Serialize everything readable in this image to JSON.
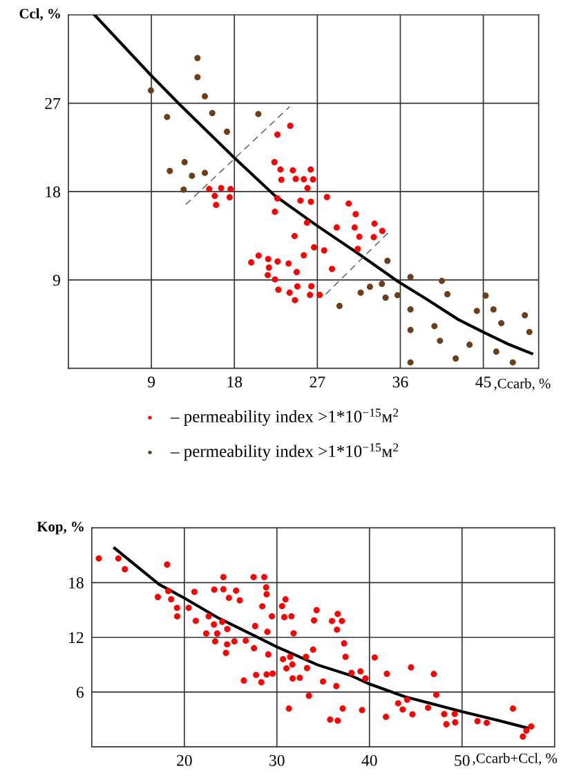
{
  "chart_data": [
    {
      "type": "scatter",
      "xlabel": ",Ccarb, %",
      "ylabel": "Ccl, %",
      "xlim": [
        0,
        51
      ],
      "ylim": [
        0,
        36
      ],
      "xticks": [
        9,
        18,
        27,
        36,
        45
      ],
      "yticks": [
        9,
        18,
        27
      ],
      "grid": true,
      "legend": "bottom",
      "marker": "circle",
      "series": [
        {
          "name": "– permeability index >1*10$^{−15}$м$^{2}$",
          "color": "#ff0000",
          "x": [
            15.27,
            16.57,
            17.59,
            15.87,
            17.49,
            16.02,
            24.06,
            22.67,
            22.35,
            23.0,
            24.34,
            26.28,
            23.1,
            24.66,
            25.53,
            26.53,
            25.93,
            22.67,
            22.4,
            25.17,
            26.3,
            28.04,
            30.4,
            31.16,
            25.88,
            29.1,
            31.05,
            33.2,
            34.04,
            31.55,
            33.12,
            31.38,
            24.53,
            26.65,
            27.74,
            25.53,
            28.59,
            20.63,
            19.83,
            21.67,
            22.69,
            23.88,
            21.75,
            21.62,
            22.4,
            24.76,
            22.77,
            23.99,
            24.83,
            26.35,
            24.57,
            26.2,
            27.25
          ],
          "values": [
            18.26,
            18.35,
            18.26,
            17.56,
            17.42,
            16.64,
            24.7,
            23.8,
            21.0,
            20.25,
            20.16,
            20.25,
            19.2,
            19.29,
            19.26,
            19.24,
            18.35,
            17.3,
            15.94,
            17.08,
            16.97,
            17.44,
            16.78,
            15.7,
            14.83,
            14.34,
            14.34,
            14.74,
            13.99,
            13.4,
            13.36,
            12.16,
            13.47,
            12.32,
            12.0,
            11.51,
            10.12,
            11.48,
            10.78,
            11.13,
            10.88,
            10.67,
            10.26,
            9.49,
            9.05,
            9.8,
            8.01,
            7.7,
            8.34,
            8.36,
            6.94,
            7.47,
            7.47
          ]
        },
        {
          "name": "– permeability index >1*10$^{−15}$м$^{2}$",
          "color": "#6b3f1a",
          "x": [
            14.0,
            14.0,
            8.95,
            14.8,
            10.7,
            15.6,
            20.6,
            17.2,
            12.6,
            11.0,
            13.4,
            14.8,
            12.5,
            34.6,
            37.1,
            40.5,
            41.1,
            31.7,
            32.7,
            34.0,
            34.4,
            35.7,
            29.4,
            37.1,
            37.1,
            37.1,
            39.7,
            40.3,
            42.0,
            43.5,
            44.3,
            45.25,
            46.1,
            46.95,
            46.4,
            48.2,
            49.5,
            50.0
          ],
          "values": [
            31.6,
            29.65,
            28.3,
            27.7,
            25.6,
            26.0,
            25.9,
            24.1,
            21.0,
            20.1,
            19.6,
            19.9,
            18.2,
            10.95,
            9.3,
            8.9,
            7.55,
            7.7,
            8.3,
            8.6,
            7.2,
            7.45,
            6.35,
            6.0,
            3.9,
            0.6,
            4.3,
            2.8,
            1.0,
            2.4,
            5.85,
            7.4,
            6.0,
            4.6,
            1.7,
            0.6,
            5.4,
            3.7
          ]
        },
        {
          "type": "line",
          "color": "#000000",
          "marker": "none",
          "line_style": "solid",
          "x": [
            2.83,
            9,
            12.04,
            17.94,
            22.37,
            26.85,
            31.33,
            35.76,
            38.8,
            42.28,
            45.0,
            47.76,
            50.25
          ],
          "values": [
            36.0,
            29.8,
            26.9,
            21.5,
            17.6,
            14.6,
            11.76,
            8.84,
            7.08,
            4.97,
            3.68,
            2.44,
            1.5
          ]
        },
        {
          "type": "line",
          "color": "#555555",
          "marker": "none",
          "line_style": "dashed",
          "x": [
            12.73,
            23.99
          ],
          "values": [
            16.68,
            26.65
          ]
        },
        {
          "type": "line",
          "color": "#555555",
          "marker": "none",
          "line_style": "dashed",
          "x": [
            27.9,
            34.74
          ],
          "values": [
            7.54,
            13.87
          ]
        }
      ]
    },
    {
      "type": "scatter",
      "xlabel": ",Ccarb+Ccl, %",
      "ylabel": "Kop, %",
      "xlim": [
        10,
        60
      ],
      "ylim": [
        0,
        24
      ],
      "xticks": [
        20,
        30,
        40,
        50
      ],
      "yticks": [
        6,
        12,
        18
      ],
      "grid": true,
      "marker": "circle",
      "series": [
        {
          "color": "#ff0000",
          "x": [
            10.76,
            12.87,
            13.57,
            18.14,
            17.14,
            18.26,
            18.58,
            19.21,
            19.23,
            20.47,
            21.09,
            21.24,
            22.63,
            22.36,
            23.2,
            23.23,
            23.55,
            23.33,
            24.1,
            24.22,
            24.22,
            24.64,
            24.62,
            24.5,
            24.82,
            25.59,
            25.41,
            25.99,
            26.63,
            26.43,
            27.48,
            27.65,
            27.53,
            27.75,
            28.32,
            28.64,
            28.84,
            28.89,
            28.42,
            29.46,
            28.97,
            29.07,
            28.89,
            29.54,
            30.56,
            30.93,
            30.8,
            31.57,
            31.8,
            30.66,
            31.43,
            31.67,
            31.03,
            31.7,
            32.47,
            33.14,
            33.26,
            33.91,
            31.3,
            34.29,
            34.01,
            36.57,
            35.95,
            37.02,
            36.49,
            37.26,
            37.41,
            40.57,
            38.06,
            39.03,
            39.57,
            41.88,
            44.49,
            46.95,
            34.98,
            36.42,
            33.46,
            47.22,
            37.11,
            39.2,
            35.75,
            36.57,
            41.78,
            43.1,
            44.07,
            43.59,
            44.64,
            46.33,
            48.07,
            49.21,
            48.31,
            49.26,
            51.67,
            52.67,
            55.5,
            57.47,
            56.95,
            56.57
          ],
          "values": [
            20.65,
            20.65,
            19.47,
            19.98,
            16.42,
            17.07,
            16.16,
            15.23,
            14.3,
            15.23,
            16.98,
            13.81,
            14.3,
            12.42,
            13.4,
            17.23,
            12.42,
            11.56,
            13.7,
            18.6,
            17.26,
            12.91,
            11.23,
            10.3,
            16.33,
            17.12,
            11.56,
            16.05,
            11.63,
            7.26,
            18.6,
            13.23,
            10.81,
            7.88,
            7.07,
            18.6,
            17.47,
            16.72,
            15.4,
            14.3,
            12.6,
            10.12,
            7.93,
            8.02,
            15.42,
            16.16,
            14.21,
            14.3,
            12.44,
            9.6,
            9.86,
            9.02,
            8.6,
            7.49,
            7.56,
            9.86,
            8.63,
            10.65,
            4.19,
            14.98,
            13.86,
            14.56,
            13.79,
            13.79,
            12.84,
            11.33,
            9.86,
            9.79,
            8.09,
            8.26,
            7.49,
            8.0,
            8.7,
            7.98,
            7.16,
            6.65,
            5.6,
            5.7,
            4.19,
            4.02,
            2.98,
            2.86,
            3.28,
            4.77,
            5.16,
            4.09,
            3.56,
            4.28,
            3.58,
            3.6,
            2.47,
            2.67,
            2.81,
            2.63,
            4.19,
            2.23,
            1.77,
            1.12
          ]
        },
        {
          "type": "line",
          "color": "#000000",
          "marker": "none",
          "line_style": "solid",
          "x": [
            12.47,
            17.27,
            20,
            23.73,
            27.45,
            30,
            34.4,
            38.0,
            40,
            43.85,
            50.0,
            53.78,
            57.13
          ],
          "values": [
            21.77,
            17.81,
            16.3,
            14.09,
            12.23,
            10.95,
            8.98,
            7.81,
            6.88,
            5.49,
            3.86,
            2.93,
            2.05
          ]
        }
      ]
    }
  ]
}
